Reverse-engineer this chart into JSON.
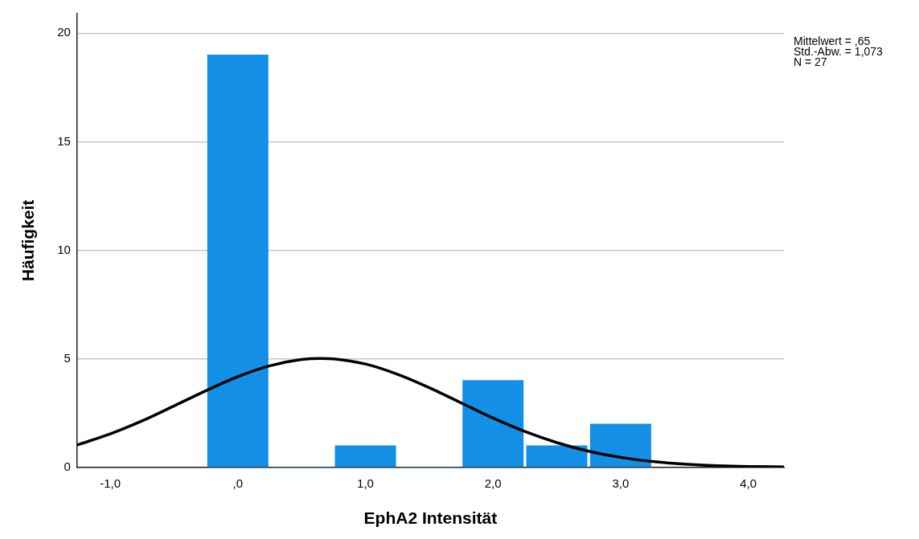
{
  "chart_data": {
    "type": "histogram",
    "xlabel": "EphA2 Intensität",
    "ylabel": "Häufigkeit",
    "bins": [
      -0.25,
      0.25,
      0.75,
      1.25,
      1.75,
      2.25,
      2.75,
      3.25
    ],
    "values": [
      19,
      0,
      1,
      0,
      4,
      1,
      2
    ],
    "color": "#1390e6",
    "series": [
      {
        "type": "line",
        "color": "#000000",
        "x": [
          -1.26,
          -1,
          -0.75,
          -0.5,
          -0.25,
          0,
          0.25,
          0.5,
          0.65,
          0.75,
          1,
          1.25,
          1.5,
          1.75,
          2,
          2.25,
          2.5,
          2.75,
          3,
          3.25,
          3.5,
          3.75,
          4,
          4.28
        ],
        "values": [
          1.03,
          1.54,
          2.14,
          2.83,
          3.53,
          4.18,
          4.68,
          4.97,
          5.02,
          5,
          4.76,
          4.29,
          3.67,
          2.97,
          2.27,
          1.65,
          1.14,
          0.74,
          0.46,
          0.27,
          0.15,
          0.08,
          0.04,
          0.02
        ]
      }
    ],
    "xlim": [
      -1.26,
      4.28
    ],
    "xticks": [
      {
        "value": -1,
        "label": "-1,0"
      },
      {
        "value": 0,
        "label": ",0"
      },
      {
        "value": 1,
        "label": "1,0"
      },
      {
        "value": 2,
        "label": "2,0"
      },
      {
        "value": 3,
        "label": "3,0"
      },
      {
        "value": 4,
        "label": "4,0"
      }
    ],
    "ylim": [
      0,
      20.9
    ],
    "yticks": [
      0,
      5,
      10,
      15,
      20
    ],
    "grid": "y",
    "marker": "none",
    "legend": false,
    "annotations": [
      "Mittelwert = ,65",
      "Std.-Abw. = 1,073",
      "N = 27"
    ]
  }
}
